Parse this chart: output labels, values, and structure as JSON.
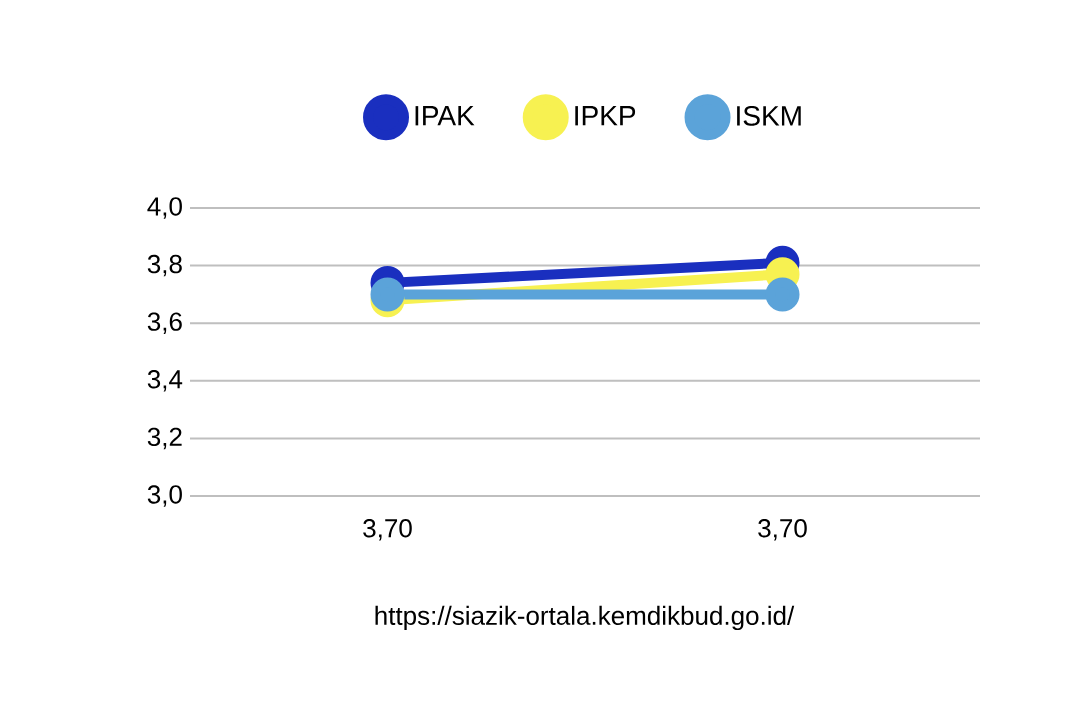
{
  "chart_data": {
    "type": "line",
    "categories": [
      "3,70",
      "3,70"
    ],
    "series": [
      {
        "name": "IPAK",
        "color": "#1a2fbf",
        "values": [
          3.74,
          3.81
        ]
      },
      {
        "name": "IPKP",
        "color": "#f7f151",
        "values": [
          3.68,
          3.77
        ]
      },
      {
        "name": "ISKM",
        "color": "#5ba3d9",
        "values": [
          3.7,
          3.7
        ]
      }
    ],
    "ylim": [
      3.0,
      4.0
    ],
    "yticks": [
      {
        "value": 3.0,
        "label": "3,0"
      },
      {
        "value": 3.2,
        "label": "3,2"
      },
      {
        "value": 3.4,
        "label": "3,4"
      },
      {
        "value": 3.6,
        "label": "3,6"
      },
      {
        "value": 3.8,
        "label": "3,8"
      },
      {
        "value": 4.0,
        "label": "4,0"
      }
    ],
    "grid": "y",
    "legend": "top",
    "marker": "circle",
    "line_style": "solid",
    "annotations": [
      "https://siazik-ortala.kemdikbud.go.id/"
    ]
  }
}
